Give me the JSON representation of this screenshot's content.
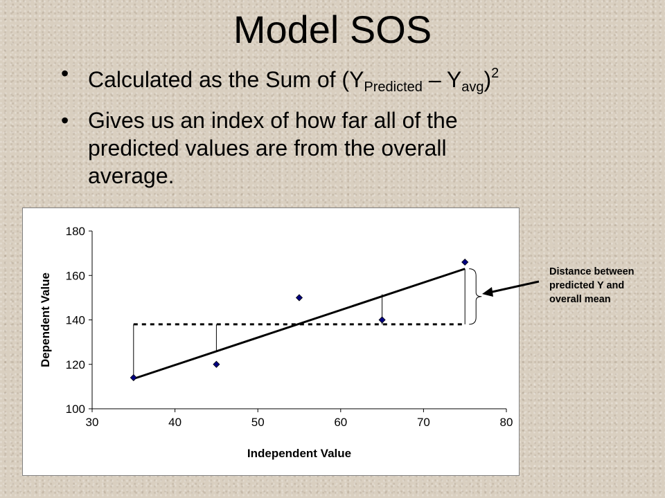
{
  "slide": {
    "title": "Model SOS",
    "bullet_symbol": "•",
    "bullet1": {
      "text": "Calculated as the Sum of (Y",
      "sub1": "Predicted",
      "mid": " – Y",
      "sub2": "avg",
      "close": ")",
      "sup": "2"
    },
    "bullet2": {
      "line1": "Gives us an index of how far all of the",
      "line2": "predicted values are from the overall",
      "line3": "average."
    }
  },
  "annotation": {
    "line1": "Distance between",
    "line2": "predicted Y and",
    "line3": "overall mean"
  },
  "chart_data": {
    "type": "scatter",
    "xlabel": "Independent Value",
    "ylabel": "Dependent Value",
    "xlim": [
      30,
      80
    ],
    "ylim": [
      100,
      180
    ],
    "xticks": [
      30,
      40,
      50,
      60,
      70,
      80
    ],
    "yticks": [
      100,
      120,
      140,
      160,
      180
    ],
    "grid": false,
    "marker_color": "#000080",
    "points": [
      {
        "x": 35,
        "y": 114
      },
      {
        "x": 45,
        "y": 120
      },
      {
        "x": 55,
        "y": 150
      },
      {
        "x": 65,
        "y": 140
      },
      {
        "x": 75,
        "y": 166
      }
    ],
    "regression_line": {
      "x": [
        35,
        75
      ],
      "y": [
        113.5,
        163
      ]
    },
    "overall_mean": 138,
    "mean_line_x": [
      35,
      75
    ],
    "deviation_segments": [
      {
        "x": 35,
        "y_top": 138,
        "y_bottom": 113.5
      },
      {
        "x": 45,
        "y_top": 138,
        "y_bottom": 125.5
      },
      {
        "x": 65,
        "y_top": 151.5,
        "y_bottom": 138
      },
      {
        "x": 75,
        "y_top": 163,
        "y_bottom": 138
      }
    ]
  }
}
